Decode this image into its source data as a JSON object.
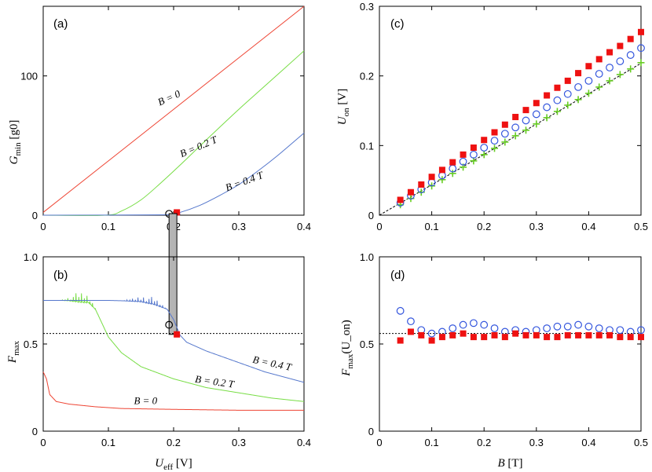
{
  "figure": {
    "panels": [
      "(a)",
      "(b)",
      "(c)",
      "(d)"
    ],
    "xlabel_left": "U_eff [V]",
    "xlabel_right": "B [T]"
  },
  "colors": {
    "red": "#ee4433",
    "green": "#77dd44",
    "blue": "#5577cc",
    "gray_band": "#b4b4b4",
    "marker_red": "#ee1111",
    "marker_blue": "#3355dd",
    "marker_green": "#66cc22",
    "dotted": "#000000"
  },
  "chart_data": [
    {
      "panel": "a",
      "type": "line",
      "ylabel": "G_min [g_0]",
      "xlim": [
        0,
        0.4
      ],
      "ylim": [
        0,
        150
      ],
      "xticks": [
        "0",
        "0.1",
        "0.2",
        "0.3",
        "0.4"
      ],
      "yticks": [
        "0",
        "100"
      ],
      "series": [
        {
          "name": "B = 0",
          "color": "red",
          "x": [
            0,
            0.1,
            0.2,
            0.3,
            0.4
          ],
          "y": [
            2,
            39,
            76,
            113,
            150
          ]
        },
        {
          "name": "B = 0.2 T",
          "color": "green",
          "x": [
            0.095,
            0.12,
            0.15,
            0.18,
            0.21,
            0.25,
            0.3,
            0.35,
            0.4
          ],
          "y": [
            0,
            3,
            11,
            23,
            36,
            54,
            76,
            97,
            118
          ]
        },
        {
          "name": "B = 0.4 T",
          "color": "blue",
          "x": [
            0,
            0.19,
            0.21,
            0.24,
            0.27,
            0.3,
            0.33,
            0.36,
            0.4
          ],
          "y": [
            0,
            0.3,
            2,
            7,
            14,
            22,
            32,
            43,
            59
          ]
        }
      ],
      "curve_labels": [
        "B = 0",
        "B = 0.2 T",
        "B = 0.4 T"
      ],
      "markers": [
        {
          "shape": "circle",
          "color": "black",
          "x": 0.193,
          "y": 1
        },
        {
          "shape": "square",
          "color": "red",
          "x": 0.205,
          "y": 2
        }
      ]
    },
    {
      "panel": "b",
      "type": "line",
      "ylabel": "F_max",
      "xlabel": "U_eff [V]",
      "xlim": [
        0,
        0.4
      ],
      "ylim": [
        0,
        1.0
      ],
      "xticks": [
        "0",
        "0.1",
        "0.2",
        "0.3",
        "0.4"
      ],
      "yticks": [
        "0",
        "0.5",
        "1.0"
      ],
      "reference_line": 0.56,
      "band": [
        0.193,
        0.205
      ],
      "series": [
        {
          "name": "B = 0",
          "color": "red",
          "x": [
            0,
            0.005,
            0.01,
            0.015,
            0.02,
            0.04,
            0.08,
            0.12,
            0.2,
            0.3,
            0.4
          ],
          "y": [
            0.34,
            0.3,
            0.21,
            0.19,
            0.17,
            0.155,
            0.14,
            0.13,
            0.125,
            0.12,
            0.12
          ]
        },
        {
          "name": "B = 0.2 T",
          "color": "green",
          "x": [
            0,
            0.04,
            0.07,
            0.08,
            0.09,
            0.1,
            0.12,
            0.15,
            0.2,
            0.25,
            0.3,
            0.35,
            0.4
          ],
          "y": [
            0.75,
            0.75,
            0.74,
            0.7,
            0.62,
            0.54,
            0.45,
            0.37,
            0.3,
            0.25,
            0.22,
            0.19,
            0.17
          ]
        },
        {
          "name": "B = 0.4 T",
          "color": "blue",
          "x": [
            0,
            0.1,
            0.15,
            0.17,
            0.19,
            0.2,
            0.21,
            0.22,
            0.25,
            0.28,
            0.31,
            0.34,
            0.37,
            0.4
          ],
          "y": [
            0.75,
            0.75,
            0.745,
            0.73,
            0.7,
            0.64,
            0.55,
            0.51,
            0.46,
            0.42,
            0.38,
            0.34,
            0.31,
            0.28
          ]
        }
      ],
      "oscillations": [
        {
          "series": "B = 0.2 T",
          "x_range": [
            0.025,
            0.095
          ],
          "amplitude_max": 0.08
        },
        {
          "series": "B = 0.4 T",
          "x_range": [
            0.12,
            0.205
          ],
          "amplitude_max": 0.06
        }
      ],
      "curve_labels": [
        "B = 0.4 T",
        "B = 0.2 T",
        "B = 0"
      ],
      "markers": [
        {
          "shape": "circle",
          "color": "black",
          "x": 0.193,
          "y": 0.61
        },
        {
          "shape": "square",
          "color": "red",
          "x": 0.205,
          "y": 0.555
        }
      ]
    },
    {
      "panel": "c",
      "type": "scatter",
      "ylabel": "U_on [V]",
      "xlim": [
        0,
        0.5
      ],
      "ylim": [
        0,
        0.3
      ],
      "xticks": [
        "0",
        "0.1",
        "0.2",
        "0.3",
        "0.4",
        "0.5"
      ],
      "yticks": [
        "0",
        "0.1",
        "0.2",
        "0.3"
      ],
      "x": [
        0.04,
        0.06,
        0.08,
        0.1,
        0.12,
        0.14,
        0.16,
        0.18,
        0.2,
        0.22,
        0.24,
        0.26,
        0.28,
        0.3,
        0.32,
        0.34,
        0.36,
        0.38,
        0.4,
        0.42,
        0.44,
        0.46,
        0.48,
        0.5
      ],
      "series": [
        {
          "name": "squares",
          "marker": "square",
          "color": "marker_red",
          "values": [
            0.022,
            0.033,
            0.044,
            0.055,
            0.065,
            0.076,
            0.087,
            0.097,
            0.108,
            0.119,
            0.13,
            0.141,
            0.151,
            0.161,
            0.172,
            0.183,
            0.193,
            0.204,
            0.214,
            0.224,
            0.234,
            0.243,
            0.253,
            0.263
          ]
        },
        {
          "name": "circles",
          "marker": "circle",
          "color": "marker_blue",
          "values": [
            0.018,
            0.028,
            0.037,
            0.047,
            0.057,
            0.067,
            0.077,
            0.087,
            0.097,
            0.107,
            0.117,
            0.126,
            0.136,
            0.145,
            0.155,
            0.165,
            0.174,
            0.184,
            0.193,
            0.203,
            0.212,
            0.221,
            0.23,
            0.24
          ]
        },
        {
          "name": "pluses",
          "marker": "plus",
          "color": "marker_green",
          "values": [
            0.015,
            0.024,
            0.033,
            0.042,
            0.051,
            0.06,
            0.069,
            0.078,
            0.087,
            0.096,
            0.105,
            0.114,
            0.122,
            0.131,
            0.14,
            0.149,
            0.158,
            0.166,
            0.175,
            0.184,
            0.193,
            0.202,
            0.21,
            0.219
          ]
        }
      ],
      "reference_line": {
        "x": [
          0,
          0.5
        ],
        "y": [
          0,
          0.218
        ]
      }
    },
    {
      "panel": "d",
      "type": "scatter",
      "ylabel": "F_max(U_on)",
      "xlabel": "B [T]",
      "xlim": [
        0,
        0.5
      ],
      "ylim": [
        0,
        1.0
      ],
      "xticks": [
        "0",
        "0.1",
        "0.2",
        "0.3",
        "0.4",
        "0.5"
      ],
      "yticks": [
        "0",
        "0.5",
        "1.0"
      ],
      "reference_line": 0.56,
      "x": [
        0.04,
        0.06,
        0.08,
        0.1,
        0.12,
        0.14,
        0.16,
        0.18,
        0.2,
        0.22,
        0.24,
        0.26,
        0.28,
        0.3,
        0.32,
        0.34,
        0.36,
        0.38,
        0.4,
        0.42,
        0.44,
        0.46,
        0.48,
        0.5
      ],
      "series": [
        {
          "name": "circles",
          "marker": "circle",
          "color": "marker_blue",
          "values": [
            0.69,
            0.63,
            0.58,
            0.56,
            0.57,
            0.59,
            0.61,
            0.62,
            0.61,
            0.59,
            0.57,
            0.58,
            0.57,
            0.58,
            0.59,
            0.6,
            0.6,
            0.61,
            0.6,
            0.59,
            0.58,
            0.58,
            0.57,
            0.58
          ]
        },
        {
          "name": "squares",
          "marker": "square",
          "color": "marker_red",
          "values": [
            0.52,
            0.57,
            0.55,
            0.52,
            0.54,
            0.55,
            0.56,
            0.54,
            0.54,
            0.55,
            0.54,
            0.56,
            0.55,
            0.55,
            0.54,
            0.54,
            0.55,
            0.55,
            0.55,
            0.55,
            0.55,
            0.54,
            0.54,
            0.54
          ]
        }
      ]
    }
  ]
}
